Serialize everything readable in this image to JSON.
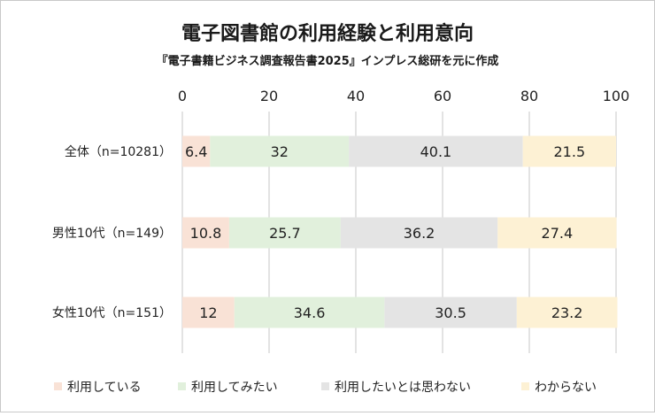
{
  "colors": {
    "利用している": "#f9e2d6",
    "利用してみたい": "#e1f0dc",
    "利用したいとは思わない": "#e4e4e4",
    "わからない": "#fdf1d4",
    "grid": "#d0d0d0",
    "border": "#c9c9c9"
  },
  "chart_data": {
    "type": "bar",
    "orientation": "horizontal",
    "stacked": true,
    "title": "電子図書館の利用経験と利用意向",
    "subtitle": "『電子書籍ビジネス調査報告書2025』インプレス総研を元に作成",
    "categories": [
      "全体（n=10281）",
      "男性10代（n=149）",
      "女性10代（n=151）"
    ],
    "series": [
      {
        "name": "利用している",
        "values": [
          6.4,
          10.8,
          12
        ]
      },
      {
        "name": "利用してみたい",
        "values": [
          32,
          25.7,
          34.6
        ]
      },
      {
        "name": "利用したいとは思わない",
        "values": [
          40.1,
          36.2,
          30.5
        ]
      },
      {
        "name": "わからない",
        "values": [
          21.5,
          27.4,
          23.2
        ]
      }
    ],
    "xlim": [
      0,
      100
    ],
    "xticks": [
      "0",
      "20",
      "40",
      "60",
      "80",
      "100"
    ],
    "grid": true,
    "legend_position": "bottom",
    "data_labels": true
  }
}
